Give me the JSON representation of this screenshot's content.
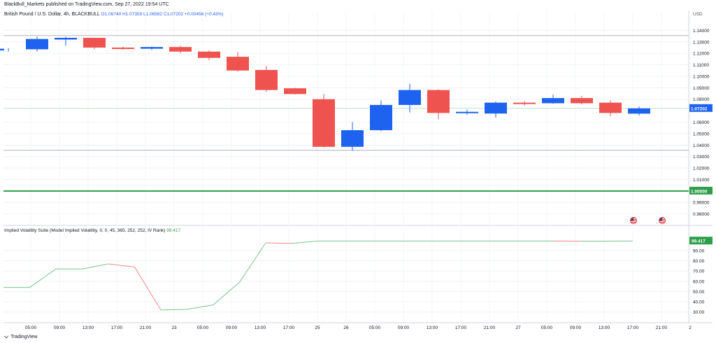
{
  "header": {
    "published": "BlackBull_Markets published on TradingView.com, Sep 27, 2022 19:54 UTC",
    "symbol": "British Pound / U.S. Dollar, 4h, BLACKBULL",
    "ohlc": "O1.06740 H1.07359 L1.06582 C1.07202 +0.00456 (+0.43%)",
    "currency": "USD"
  },
  "indicator": {
    "label": "Implied Volatility Suite (Model Implied Volatility, 0, 0, 45, 365, 252, 252, IV Rank)",
    "value": "99.417"
  },
  "footer": {
    "brand": "TradingView",
    "logo_icon": "tradingview-logo-icon"
  },
  "colors": {
    "up": "#1e63f0",
    "down": "#ef5350",
    "support": "#2e9e4a",
    "iv_up": "#7cc48a",
    "iv_down": "#ef8a80"
  },
  "chart_data": [
    {
      "type": "candlestick",
      "title": "British Pound / U.S. Dollar, 4h, BLACKBULL",
      "ylabel": "USD",
      "ylim": [
        0.97,
        1.15
      ],
      "y_ticks": [
        "0.98000",
        "0.99000",
        "1.01000",
        "1.02000",
        "1.03000",
        "1.04000",
        "1.05000",
        "1.06000",
        "1.08000",
        "1.09000",
        "1.10000",
        "1.11000",
        "1.12000",
        "1.13000",
        "1.14000"
      ],
      "x_ticks": [
        "05:00",
        "09:00",
        "13:00",
        "17:00",
        "21:00",
        "23",
        "05:00",
        "09:00",
        "13:00",
        "17:00",
        "25",
        "26",
        "05:00",
        "09:00",
        "13:00",
        "17:00",
        "21:00",
        "27",
        "05:00",
        "09:00",
        "13:00",
        "17:00",
        "21:00",
        "2"
      ],
      "candles": [
        {
          "o": 1.1225,
          "h": 1.1245,
          "l": 1.1215,
          "c": 1.124
        },
        {
          "o": 1.1235,
          "h": 1.1345,
          "l": 1.1215,
          "c": 1.1325
        },
        {
          "o": 1.132,
          "h": 1.1345,
          "l": 1.1265,
          "c": 1.1335
        },
        {
          "o": 1.1335,
          "h": 1.1335,
          "l": 1.1235,
          "c": 1.125
        },
        {
          "o": 1.125,
          "h": 1.126,
          "l": 1.123,
          "c": 1.124
        },
        {
          "o": 1.124,
          "h": 1.126,
          "l": 1.123,
          "c": 1.1255
        },
        {
          "o": 1.1255,
          "h": 1.1265,
          "l": 1.12,
          "c": 1.1215
        },
        {
          "o": 1.1215,
          "h": 1.1225,
          "l": 1.114,
          "c": 1.116
        },
        {
          "o": 1.117,
          "h": 1.121,
          "l": 1.104,
          "c": 1.105
        },
        {
          "o": 1.1055,
          "h": 1.109,
          "l": 1.0865,
          "c": 1.088
        },
        {
          "o": 1.0895,
          "h": 1.09,
          "l": 1.084,
          "c": 1.0845
        },
        {
          "o": 1.08,
          "h": 1.0845,
          "l": 1.038,
          "c": 1.0385
        },
        {
          "o": 1.0385,
          "h": 1.06,
          "l": 1.035,
          "c": 1.053
        },
        {
          "o": 1.053,
          "h": 1.079,
          "l": 1.052,
          "c": 1.075
        },
        {
          "o": 1.075,
          "h": 1.0935,
          "l": 1.0685,
          "c": 1.088
        },
        {
          "o": 1.088,
          "h": 1.0885,
          "l": 1.0625,
          "c": 1.068
        },
        {
          "o": 1.0685,
          "h": 1.071,
          "l": 1.0665,
          "c": 1.069
        },
        {
          "o": 1.0675,
          "h": 1.078,
          "l": 1.064,
          "c": 1.077
        },
        {
          "o": 1.077,
          "h": 1.0785,
          "l": 1.0745,
          "c": 1.076
        },
        {
          "o": 1.0765,
          "h": 1.084,
          "l": 1.076,
          "c": 1.081
        },
        {
          "o": 1.081,
          "h": 1.083,
          "l": 1.0755,
          "c": 1.0765
        },
        {
          "o": 1.077,
          "h": 1.079,
          "l": 1.065,
          "c": 1.068
        },
        {
          "o": 1.0674,
          "h": 1.0736,
          "l": 1.0658,
          "c": 1.072
        }
      ],
      "current_price": "1.07202",
      "support_level": "1.00000",
      "resistance_level": 1.1355,
      "upper_band_level": 1.0355,
      "grid": true
    },
    {
      "type": "line",
      "title": "Implied Volatility Suite (Model Implied Volatility, 0, 0, 45, 365, 252, 252, IV Rank)",
      "ylim": [
        25,
        105
      ],
      "y_ticks": [
        "30.00",
        "40.00",
        "50.00",
        "60.00",
        "70.00",
        "80.00",
        "90.00"
      ],
      "series": [
        {
          "values": [
            54,
            54,
            72,
            72,
            77,
            74,
            32,
            32.5,
            37,
            59,
            97.5,
            97,
            99.4,
            99.4,
            99.4,
            99.4,
            99.4,
            99.4,
            99.4,
            99.4,
            99.4,
            99.4,
            99.2,
            99.2,
            99.4
          ]
        }
      ],
      "last_value": "99.417",
      "grid": true
    }
  ]
}
